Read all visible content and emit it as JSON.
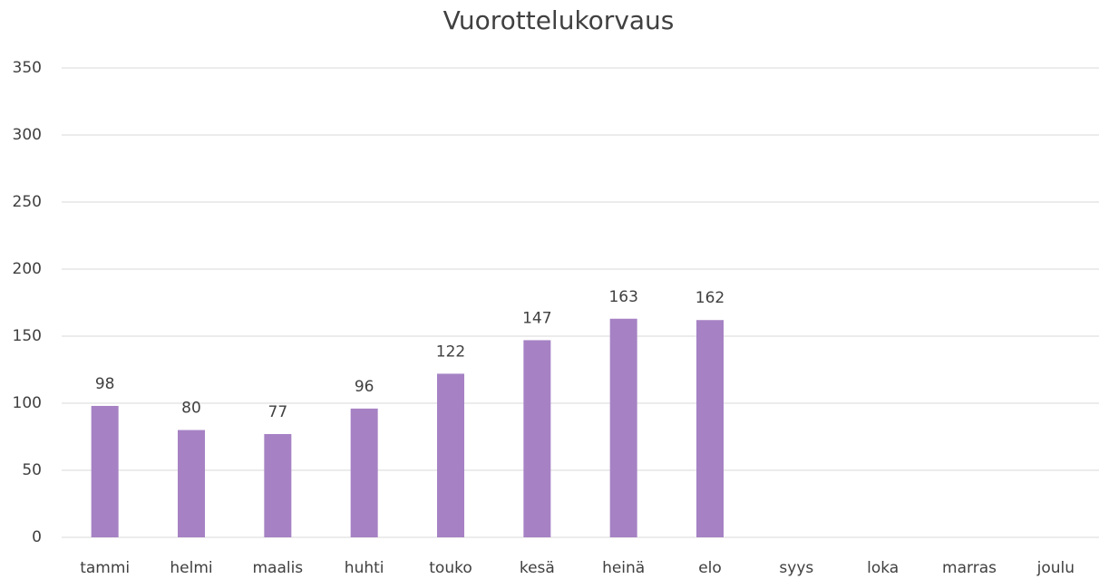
{
  "chart_data": {
    "type": "bar",
    "title": "Vuorottelukorvaus",
    "categories": [
      "tammi",
      "helmi",
      "maalis",
      "huhti",
      "touko",
      "kesä",
      "heinä",
      "elo",
      "syys",
      "loka",
      "marras",
      "joulu"
    ],
    "values": [
      98,
      80,
      77,
      96,
      122,
      147,
      163,
      162,
      null,
      null,
      null,
      null
    ],
    "color": "#a682c4",
    "ylim": [
      0,
      350
    ],
    "yticks": [
      0,
      50,
      100,
      150,
      200,
      250,
      300,
      350
    ],
    "grid": true
  }
}
